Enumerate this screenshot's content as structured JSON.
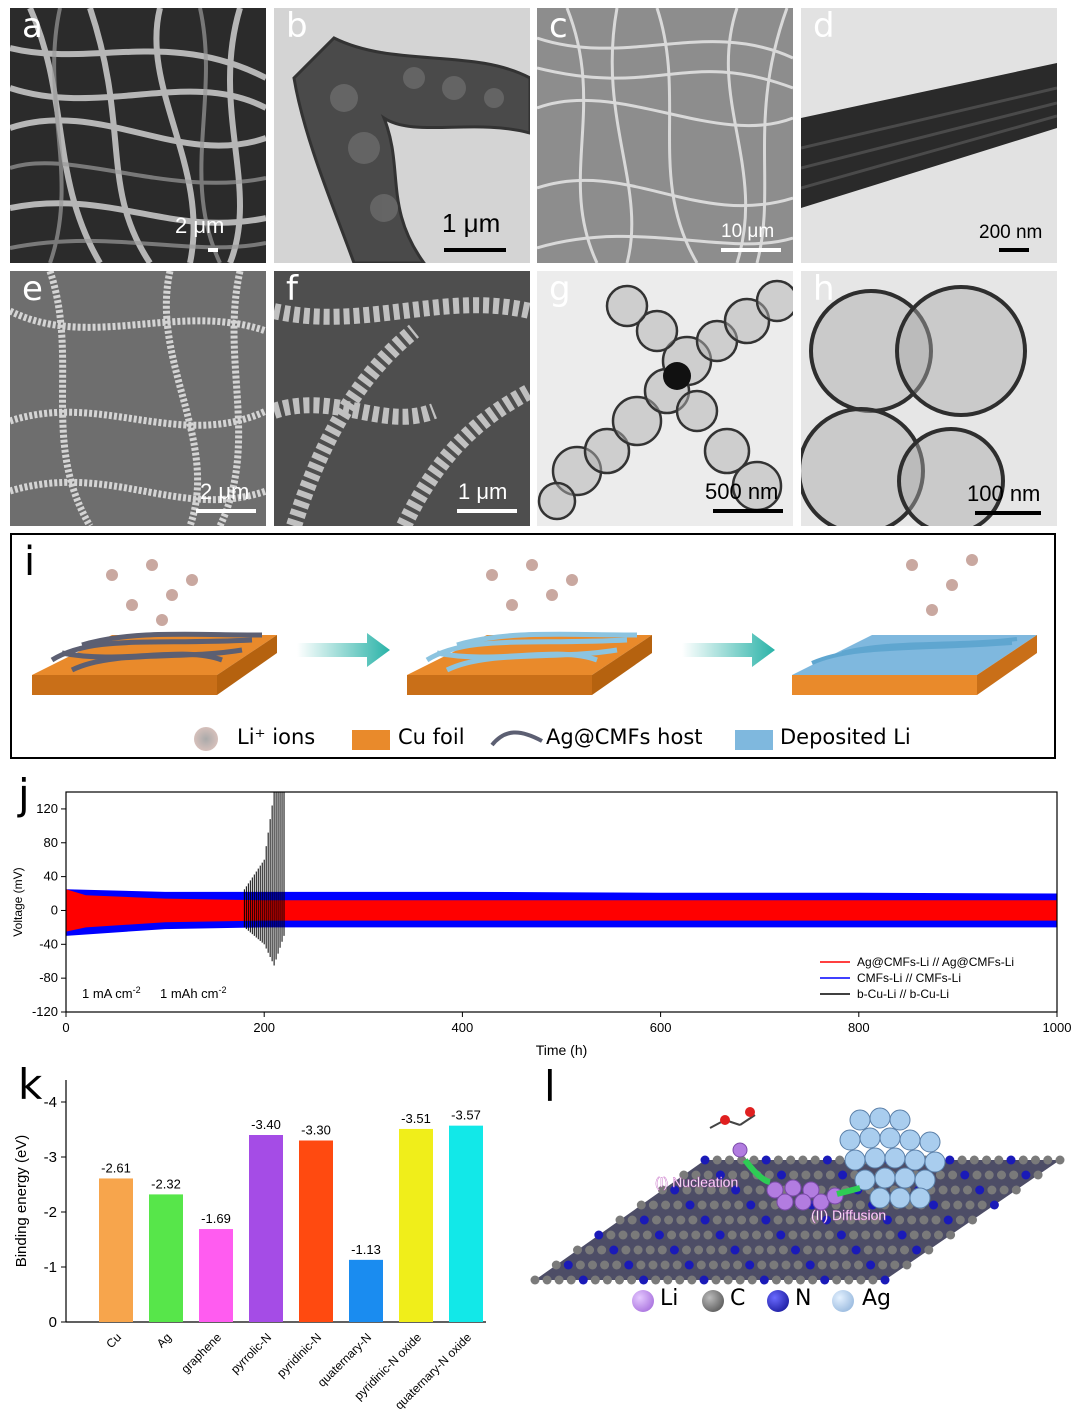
{
  "panels": {
    "a": {
      "letter": "a",
      "scale": "2 μm"
    },
    "b": {
      "letter": "b",
      "scale": "1 μm"
    },
    "c": {
      "letter": "c",
      "scale": "10 μm"
    },
    "d": {
      "letter": "d",
      "scale": "200 nm"
    },
    "e": {
      "letter": "e",
      "scale": "2 μm"
    },
    "f": {
      "letter": "f",
      "scale": "1 μm"
    },
    "g": {
      "letter": "g",
      "scale": "500 nm"
    },
    "h": {
      "letter": "h",
      "scale": "100 nm"
    },
    "i": {
      "letter": "i"
    },
    "j": {
      "letter": "j"
    },
    "k": {
      "letter": "k"
    },
    "l": {
      "letter": "l"
    }
  },
  "schematic_i": {
    "legend": [
      "Li⁺ ions",
      "Cu foil",
      "Ag@CMFs host",
      "Deposited Li"
    ],
    "colors": {
      "cu": "#e98a2b",
      "fiber": "#5c5f72",
      "fiber_coated": "#8cc4e0",
      "li": "#7fb8de",
      "ion": "#c9a8a0",
      "arrow": "#2ab3a8"
    }
  },
  "model_l": {
    "labels": [
      "(I) Nucleation",
      "(II) Diffusion"
    ],
    "legend": [
      "Li",
      "C",
      "N",
      "Ag"
    ],
    "colors": {
      "Li": "#b27ce0",
      "C": "#6a6a6a",
      "N": "#1a1ab8",
      "Ag": "#a9cdee"
    }
  },
  "chart_data": [
    {
      "type": "line",
      "panel": "j",
      "xlabel": "Time (h)",
      "ylabel": "Voltage (mV)",
      "xlim": [
        0,
        1000
      ],
      "ylim": [
        -120,
        140
      ],
      "xticks": [
        0,
        200,
        400,
        600,
        800,
        1000
      ],
      "yticks": [
        -120,
        -80,
        -40,
        0,
        40,
        80,
        120
      ],
      "annotation": [
        "1 mA cm",
        "-2",
        "1 mAh cm",
        "-2"
      ],
      "legend_position": "bottom-right",
      "series": [
        {
          "name": "Ag@CMFs-Li // Ag@CMFs-Li",
          "color": "#ff0000",
          "x": [
            0,
            20,
            100,
            200,
            400,
            600,
            800,
            1000
          ],
          "upper": [
            25,
            18,
            14,
            12,
            12,
            12,
            12,
            12
          ],
          "lower": [
            -25,
            -20,
            -14,
            -12,
            -12,
            -12,
            -12,
            -12
          ]
        },
        {
          "name": "CMFs-Li // CMFs-Li",
          "color": "#0000ff",
          "x": [
            0,
            100,
            200,
            400,
            600,
            800,
            1000
          ],
          "upper": [
            25,
            22,
            22,
            22,
            21,
            21,
            20
          ],
          "lower": [
            -30,
            -22,
            -20,
            -20,
            -20,
            -20,
            -20
          ]
        },
        {
          "name": "b-Cu-Li // b-Cu-Li",
          "color": "#000000",
          "x": [
            0,
            150,
            180,
            200,
            210,
            220
          ],
          "upper": [
            25,
            18,
            25,
            60,
            140,
            140
          ],
          "lower": [
            -25,
            -15,
            -20,
            -40,
            -65,
            -30
          ]
        }
      ]
    },
    {
      "type": "bar",
      "panel": "k",
      "ylabel": "Binding energy (eV)",
      "ylim": [
        0,
        -4.4
      ],
      "yticks": [
        0,
        -1,
        -2,
        -3,
        -4
      ],
      "categories": [
        "Cu",
        "Ag",
        "graphene",
        "pyrrolic-N",
        "pyridinic-N",
        "quaternary-N",
        "pyridinic-N oxide",
        "quaternary-N oxide"
      ],
      "values": [
        -2.61,
        -2.32,
        -1.69,
        -3.4,
        -3.3,
        -1.13,
        -3.51,
        -3.57
      ],
      "value_labels": [
        "-2.61",
        "-2.32",
        "-1.69",
        "-3.40",
        "-3.30",
        "-1.13",
        "-3.51",
        "-3.57"
      ],
      "colors": [
        "#f7a54c",
        "#57e64a",
        "#ff5cf0",
        "#a54ce6",
        "#ff4a10",
        "#1a8cf0",
        "#f0ee1a",
        "#12e8e8"
      ]
    }
  ]
}
